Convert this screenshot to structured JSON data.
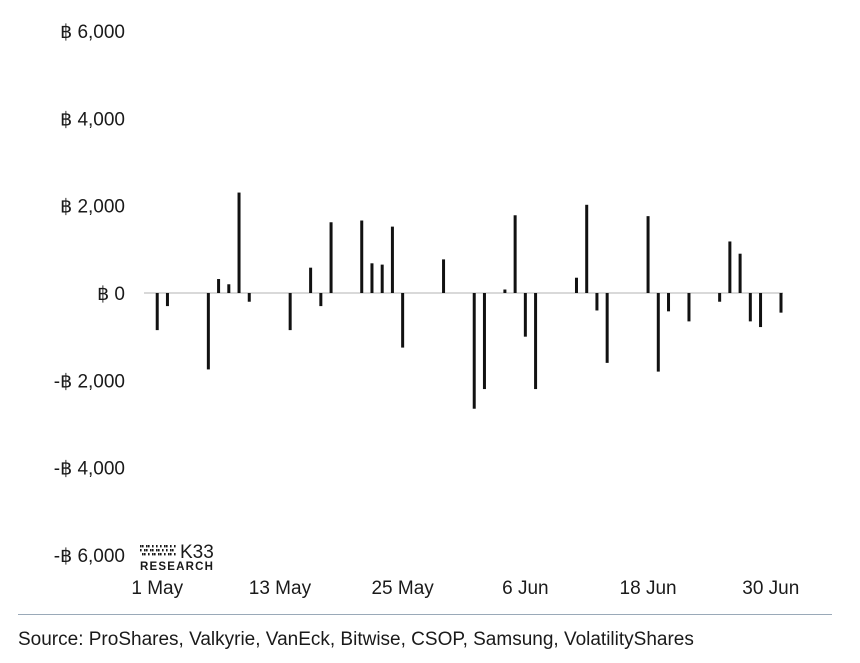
{
  "chart_data": {
    "type": "bar",
    "title": "",
    "xlabel": "",
    "ylabel": "",
    "ylim": [
      -6000,
      6000
    ],
    "y_ticks": [
      6000,
      4000,
      2000,
      0,
      -2000,
      -4000,
      -6000
    ],
    "y_tick_labels": [
      "฿ 6,000",
      "฿ 4,000",
      "฿ 2,000",
      "฿ 0",
      "-฿ 2,000",
      "-฿ 4,000",
      "-฿ 6,000"
    ],
    "x_tick_labels": [
      "1 May",
      "13 May",
      "25 May",
      "6 Jun",
      "18 Jun",
      "30 Jun"
    ],
    "x_tick_dates": [
      "2024-05-01",
      "2024-05-13",
      "2024-05-25",
      "2024-06-06",
      "2024-06-18",
      "2024-06-30"
    ],
    "x_range": [
      "2024-04-30",
      "2024-07-01"
    ],
    "bar_color": "#111111",
    "zero_line_color": "#d9d9d9",
    "grid": false,
    "legend": "none",
    "points": [
      {
        "date": "2024-05-01",
        "value": -850
      },
      {
        "date": "2024-05-02",
        "value": -300
      },
      {
        "date": "2024-05-03",
        "value": 0
      },
      {
        "date": "2024-05-06",
        "value": -1750
      },
      {
        "date": "2024-05-07",
        "value": 320
      },
      {
        "date": "2024-05-08",
        "value": 200
      },
      {
        "date": "2024-05-09",
        "value": 2300
      },
      {
        "date": "2024-05-10",
        "value": -200
      },
      {
        "date": "2024-05-13",
        "value": 0
      },
      {
        "date": "2024-05-14",
        "value": -850
      },
      {
        "date": "2024-05-15",
        "value": 0
      },
      {
        "date": "2024-05-16",
        "value": 580
      },
      {
        "date": "2024-05-17",
        "value": -300
      },
      {
        "date": "2024-05-18",
        "value": 1620
      },
      {
        "date": "2024-05-21",
        "value": 1660
      },
      {
        "date": "2024-05-22",
        "value": 680
      },
      {
        "date": "2024-05-23",
        "value": 650
      },
      {
        "date": "2024-05-24",
        "value": 1520
      },
      {
        "date": "2024-05-25",
        "value": -1250
      },
      {
        "date": "2024-05-28",
        "value": 0
      },
      {
        "date": "2024-05-29",
        "value": 770
      },
      {
        "date": "2024-05-31",
        "value": 0
      },
      {
        "date": "2024-06-01",
        "value": -2650
      },
      {
        "date": "2024-06-02",
        "value": -2200
      },
      {
        "date": "2024-06-04",
        "value": 80
      },
      {
        "date": "2024-06-05",
        "value": 1780
      },
      {
        "date": "2024-06-06",
        "value": -1000
      },
      {
        "date": "2024-06-07",
        "value": -2200
      },
      {
        "date": "2024-06-11",
        "value": 350
      },
      {
        "date": "2024-06-12",
        "value": 2020
      },
      {
        "date": "2024-06-13",
        "value": -400
      },
      {
        "date": "2024-06-14",
        "value": -1600
      },
      {
        "date": "2024-06-18",
        "value": 1760
      },
      {
        "date": "2024-06-19",
        "value": -1800
      },
      {
        "date": "2024-06-20",
        "value": -420
      },
      {
        "date": "2024-06-22",
        "value": -650
      },
      {
        "date": "2024-06-25",
        "value": -200
      },
      {
        "date": "2024-06-26",
        "value": 1180
      },
      {
        "date": "2024-06-27",
        "value": 900
      },
      {
        "date": "2024-06-28",
        "value": -650
      },
      {
        "date": "2024-06-29",
        "value": -780
      },
      {
        "date": "2024-07-01",
        "value": -450
      }
    ]
  },
  "logo": {
    "brand": "K33",
    "sub": "RESEARCH"
  },
  "source_text": "Source: ProShares, Valkyrie, VanEck, Bitwise, CSOP, Samsung, VolatilityShares"
}
